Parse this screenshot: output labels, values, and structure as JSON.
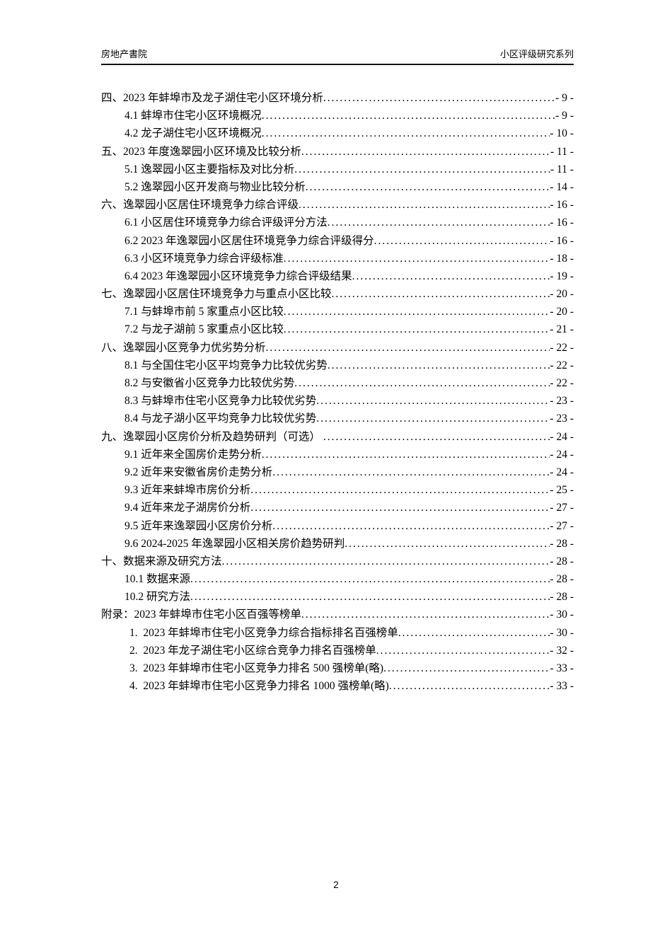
{
  "header": {
    "left": "房地产書院",
    "right": "小区评级研究系列"
  },
  "toc": {
    "entries": [
      {
        "level": 0,
        "label": "四、2023 年蚌埠市及龙子湖住宅小区环境分析",
        "page": "- 9 -"
      },
      {
        "level": 1,
        "label": "4.1 蚌埠市住宅小区环境概况",
        "page": "- 9 -"
      },
      {
        "level": 1,
        "label": "4.2 龙子湖住宅小区环境概况",
        "page": "- 10 -"
      },
      {
        "level": 0,
        "label": "五、2023 年度逸翠园小区环境及比较分析",
        "page": "- 11 -"
      },
      {
        "level": 1,
        "label": "5.1 逸翠园小区主要指标及对比分析",
        "page": "- 11 -"
      },
      {
        "level": 1,
        "label": "5.2 逸翠园小区开发商与物业比较分析",
        "page": "- 14 -"
      },
      {
        "level": 0,
        "label": "六、逸翠园小区居住环境竞争力综合评级",
        "page": "- 16 -"
      },
      {
        "level": 1,
        "label": "6.1 小区居住环境竞争力综合评级评分方法",
        "page": "- 16 -"
      },
      {
        "level": 1,
        "label": "6.2 2023 年逸翠园小区居住环境竞争力综合评级得分",
        "page": "- 16 -"
      },
      {
        "level": 1,
        "label": "6.3 小区环境竞争力综合评级标准",
        "page": "- 18 -"
      },
      {
        "level": 1,
        "label": "6.4 2023 年逸翠园小区环境竞争力综合评级结果",
        "page": "- 19 -"
      },
      {
        "level": 0,
        "label": "七、逸翠园小区居住环境竞争力与重点小区比较",
        "page": "- 20 -"
      },
      {
        "level": 1,
        "label": "7.1 与蚌埠市前 5 家重点小区比较",
        "page": "- 20 -"
      },
      {
        "level": 1,
        "label": "7.2 与龙子湖前 5 家重点小区比较",
        "page": "- 21 -"
      },
      {
        "level": 0,
        "label": "八、逸翠园小区竞争力优劣势分析",
        "page": "- 22 -"
      },
      {
        "level": 1,
        "label": "8.1 与全国住宅小区平均竞争力比较优劣势",
        "page": "- 22 -"
      },
      {
        "level": 1,
        "label": "8.2 与安徽省小区竞争力比较优劣势",
        "page": "- 22 -"
      },
      {
        "level": 1,
        "label": "8.3 与蚌埠市住宅小区竞争力比较优劣势",
        "page": "- 23 -"
      },
      {
        "level": 1,
        "label": "8.4 与龙子湖小区平均竞争力比较优劣势",
        "page": "- 23 -"
      },
      {
        "level": 0,
        "label": "九、逸翠园小区房价分析及趋势研判（可选） ",
        "page": "- 24 -"
      },
      {
        "level": 1,
        "label": "9.1 近年来全国房价走势分析",
        "page": "- 24 -"
      },
      {
        "level": 1,
        "label": "9.2 近年来安徽省房价走势分析",
        "page": "- 24 -"
      },
      {
        "level": 1,
        "label": "9.3 近年来蚌埠市房价分析",
        "page": "- 25 -"
      },
      {
        "level": 1,
        "label": "9.4 近年来龙子湖房价分析",
        "page": "- 27 -"
      },
      {
        "level": 1,
        "label": "9.5 近年来逸翠园小区房价分析",
        "page": "- 27 -"
      },
      {
        "level": 1,
        "label": "9.6 2024-2025 年逸翠园小区相关房价趋势研判",
        "page": "- 28 -"
      },
      {
        "level": 0,
        "label": "十、数据来源及研究方法",
        "page": "- 28 -"
      },
      {
        "level": 1,
        "label": "10.1 数据来源",
        "page": "- 28 -"
      },
      {
        "level": 1,
        "label": "10.2 研究方法",
        "page": "- 28 -"
      },
      {
        "level": 0,
        "label": "附录：2023 年蚌埠市住宅小区百强等榜单",
        "page": "- 30 -"
      },
      {
        "level": 2,
        "label": "1.  2023 年蚌埠市住宅小区竞争力综合指标排名百强榜单",
        "page": "- 30 -"
      },
      {
        "level": 2,
        "label": "2.  2023 年龙子湖住宅小区综合竞争力排名百强榜单",
        "page": "- 32 -"
      },
      {
        "level": 2,
        "label": "3.  2023 年蚌埠市住宅小区竞争力排名 500 强榜单(略)",
        "page": "- 33 -"
      },
      {
        "level": 2,
        "label": "4.  2023 年蚌埠市住宅小区竞争力排名 1000 强榜单(略)",
        "page": "- 33 -"
      }
    ]
  },
  "footer": {
    "page_number": "2"
  }
}
